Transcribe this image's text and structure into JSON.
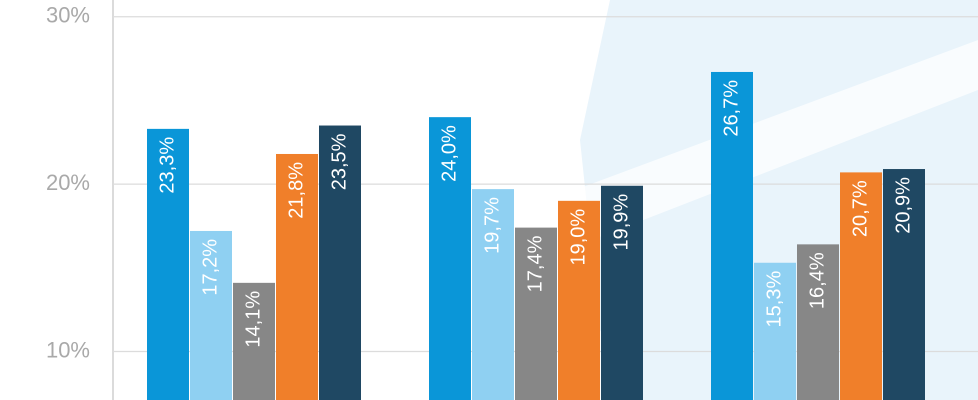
{
  "chart_data": {
    "type": "bar",
    "categories": [
      null,
      null,
      null
    ],
    "series": [
      {
        "color": "#0a96d8",
        "values": [
          23.3,
          24.0,
          26.7
        ],
        "value_labels": [
          "23,3%",
          "24,0%",
          "26,7%"
        ]
      },
      {
        "color": "#8fd0f2",
        "values": [
          17.2,
          19.7,
          15.3
        ],
        "value_labels": [
          "17,2%",
          "19,7%",
          "15,3%"
        ]
      },
      {
        "color": "#878787",
        "values": [
          14.1,
          17.4,
          16.4
        ],
        "value_labels": [
          "14,1%",
          "17,4%",
          "16,4%"
        ]
      },
      {
        "color": "#f07f2a",
        "values": [
          21.8,
          19.0,
          20.7
        ],
        "value_labels": [
          "21,8%",
          "19,0%",
          "20,7%"
        ]
      },
      {
        "color": "#1f4863",
        "values": [
          23.5,
          19.9,
          20.9
        ],
        "value_labels": [
          "23,5%",
          "19,9%",
          "20,9%"
        ]
      }
    ],
    "ylim": [
      7.1,
      31.0
    ],
    "yticks": [
      {
        "value": 10,
        "label": "10%"
      },
      {
        "value": 20,
        "label": "20%"
      },
      {
        "value": 30,
        "label": "30%"
      }
    ],
    "grid": true
  }
}
